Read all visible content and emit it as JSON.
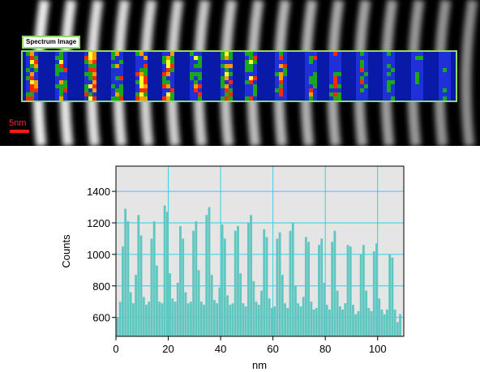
{
  "image_panel": {
    "label": "Spectrum Image",
    "scale_bar_text": "5nm",
    "frame_color": "#8fd86b"
  },
  "chart_data": {
    "type": "bar",
    "xlabel": "nm",
    "ylabel": "Counts",
    "xlim": [
      0,
      110
    ],
    "ylim": [
      480,
      1560
    ],
    "xticks": [
      0,
      20,
      40,
      60,
      80,
      100
    ],
    "yticks": [
      600,
      800,
      1000,
      1200,
      1400
    ],
    "grid": true,
    "bar_color": "#5fc6c0",
    "plot_background": "#e5e5e5",
    "grid_color": "#2fd0e8",
    "x": [
      0,
      1,
      2,
      3,
      4,
      5,
      6,
      7,
      8,
      9,
      10,
      11,
      12,
      13,
      14,
      15,
      16,
      17,
      18,
      19,
      20,
      21,
      22,
      23,
      24,
      25,
      26,
      27,
      28,
      29,
      30,
      31,
      32,
      33,
      34,
      35,
      36,
      37,
      38,
      39,
      40,
      41,
      42,
      43,
      44,
      45,
      46,
      47,
      48,
      49,
      50,
      51,
      52,
      53,
      54,
      55,
      56,
      57,
      58,
      59,
      60,
      61,
      62,
      63,
      64,
      65,
      66,
      67,
      68,
      69,
      70,
      71,
      72,
      73,
      74,
      75,
      76,
      77,
      78,
      79,
      80,
      81,
      82,
      83,
      84,
      85,
      86,
      87,
      88,
      89,
      90,
      91,
      92,
      93,
      94,
      95,
      96,
      97,
      98,
      99,
      100,
      101,
      102,
      103,
      104,
      105,
      106,
      107,
      108
    ],
    "values": [
      600,
      700,
      1050,
      1290,
      1210,
      760,
      690,
      870,
      1250,
      1120,
      730,
      680,
      700,
      1100,
      1210,
      930,
      700,
      690,
      1310,
      1270,
      880,
      720,
      700,
      820,
      1180,
      1100,
      760,
      690,
      700,
      1150,
      1210,
      900,
      700,
      680,
      1250,
      1300,
      870,
      710,
      690,
      790,
      1190,
      1100,
      740,
      680,
      690,
      1150,
      1180,
      880,
      690,
      670,
      1200,
      1250,
      830,
      700,
      680,
      770,
      1160,
      1110,
      720,
      660,
      670,
      1100,
      1140,
      870,
      690,
      660,
      1150,
      1200,
      800,
      690,
      670,
      730,
      1110,
      1080,
      700,
      650,
      660,
      1060,
      1100,
      820,
      680,
      650,
      1080,
      1150,
      770,
      670,
      650,
      690,
      1060,
      1050,
      680,
      620,
      640,
      1000,
      1060,
      770,
      660,
      640,
      1020,
      1070,
      720,
      650,
      620,
      650,
      1000,
      980,
      650,
      570,
      620
    ]
  }
}
